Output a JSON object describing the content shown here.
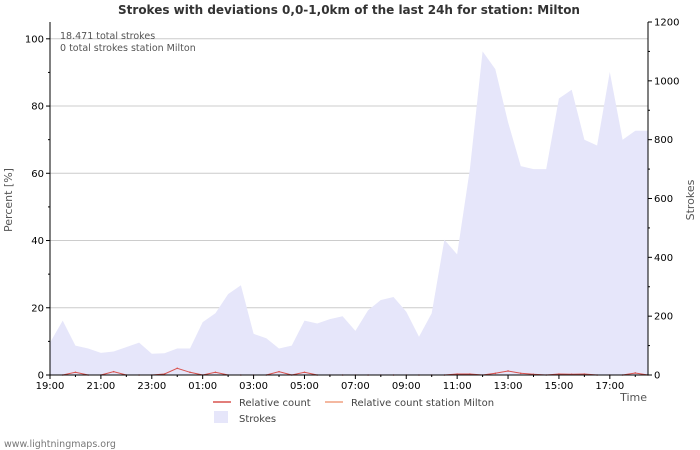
{
  "chart_data": {
    "type": "area",
    "title": "Strokes with deviations 0,0-1,0km of the last 24h for station: Milton",
    "info_lines": [
      "18.471 total strokes",
      "0 total strokes station Milton"
    ],
    "ylabel_left": "Percent   [%]",
    "ylabel_right": "Strokes",
    "xlabel": "Time",
    "ylim_left": [
      0,
      105
    ],
    "ylim_right": [
      0,
      1200
    ],
    "left_ticks": [
      0,
      20,
      40,
      60,
      80,
      100
    ],
    "right_ticks": [
      0,
      200,
      400,
      600,
      800,
      1000,
      1200
    ],
    "x_range_hours": [
      0,
      23.5
    ],
    "x_ticks": [
      {
        "h": 0,
        "label": "19:00"
      },
      {
        "h": 2,
        "label": "21:00"
      },
      {
        "h": 4,
        "label": "23:00"
      },
      {
        "h": 6,
        "label": "01:00"
      },
      {
        "h": 8,
        "label": "03:00"
      },
      {
        "h": 10,
        "label": "05:00"
      },
      {
        "h": 12,
        "label": "07:00"
      },
      {
        "h": 14,
        "label": "09:00"
      },
      {
        "h": 16,
        "label": "11:00"
      },
      {
        "h": 18,
        "label": "13:00"
      },
      {
        "h": 20,
        "label": "15:00"
      },
      {
        "h": 22,
        "label": "17:00"
      }
    ],
    "series": [
      {
        "name": "Strokes",
        "axis": "right",
        "style": "area",
        "color": "#e6e6fa",
        "x": [
          0,
          0.5,
          1,
          1.5,
          2,
          2.5,
          3,
          3.5,
          4,
          4.5,
          5,
          5.5,
          6,
          6.5,
          7,
          7.5,
          8,
          8.5,
          9,
          9.5,
          10,
          10.5,
          11,
          11.5,
          12,
          12.5,
          13,
          13.5,
          14,
          14.5,
          15,
          15.5,
          16,
          16.5,
          17,
          17.5,
          18,
          18.5,
          19,
          19.5,
          20,
          20.5,
          21,
          21.5,
          22,
          22.5,
          23,
          23.5
        ],
        "values": [
          110,
          185,
          100,
          90,
          75,
          80,
          95,
          110,
          72,
          74,
          90,
          90,
          180,
          210,
          275,
          305,
          140,
          125,
          90,
          100,
          185,
          175,
          190,
          200,
          150,
          220,
          255,
          265,
          215,
          130,
          210,
          460,
          410,
          700,
          1100,
          1040,
          860,
          710,
          700,
          700,
          940,
          970,
          800,
          780,
          1030,
          800,
          830,
          830
        ]
      },
      {
        "name": "Relative count",
        "axis": "left",
        "style": "line",
        "color": "#d9534f",
        "x": [
          0,
          0.5,
          1,
          1.5,
          2,
          2.5,
          3,
          3.5,
          4,
          4.5,
          5,
          5.5,
          6,
          6.5,
          7,
          7.5,
          8,
          8.5,
          9,
          9.5,
          10,
          10.5,
          11,
          11.5,
          12,
          12.5,
          13,
          13.5,
          14,
          14.5,
          15,
          15.5,
          16,
          16.5,
          17,
          17.5,
          18,
          18.5,
          19,
          19.5,
          20,
          20.5,
          21,
          21.5,
          22,
          22.5,
          23,
          23.5
        ],
        "values": [
          0,
          0,
          0.8,
          0,
          0,
          1,
          0,
          0,
          0,
          0.3,
          2,
          0.8,
          0,
          0.8,
          0,
          0,
          0,
          0,
          1,
          0,
          0.8,
          0,
          0,
          0,
          0,
          0,
          0,
          0,
          0,
          0,
          0,
          0,
          0.3,
          0.3,
          0,
          0.5,
          1.2,
          0.5,
          0.2,
          0,
          0.3,
          0.2,
          0.3,
          0,
          0,
          0,
          0.6,
          0
        ]
      },
      {
        "name": "Relative count station Milton",
        "axis": "left",
        "style": "line",
        "color": "#f0a080",
        "x": [
          0,
          23.5
        ],
        "values": [
          0,
          0
        ]
      }
    ],
    "legend": [
      "Relative count",
      "Relative count station Milton",
      "Strokes"
    ],
    "credit": "www.lightningmaps.org"
  }
}
